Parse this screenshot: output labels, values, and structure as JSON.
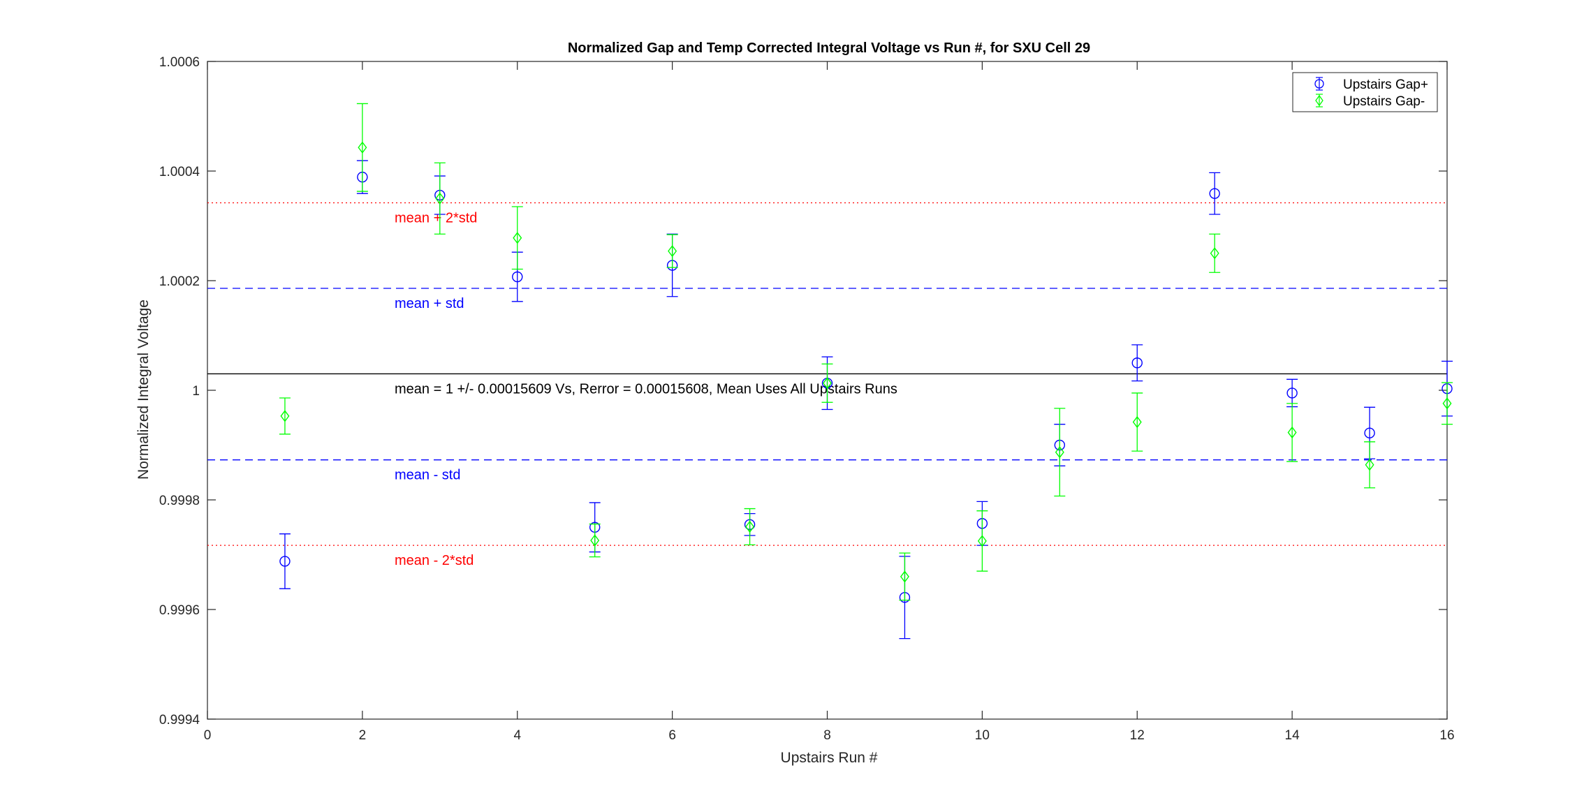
{
  "chart_data": {
    "type": "scatter",
    "title": "Normalized Gap and Temp Corrected Integral Voltage vs Run #, for SXU Cell 29",
    "xlabel": "Upstairs Run #",
    "ylabel": "Normalized Integral Voltage",
    "xlim": [
      0,
      16
    ],
    "ylim": [
      0.9994,
      1.0006
    ],
    "x_ticks": [
      0,
      2,
      4,
      6,
      8,
      10,
      12,
      14,
      16
    ],
    "y_ticks": [
      0.9994,
      0.9996,
      0.9998,
      1,
      1.0002,
      1.0004,
      1.0006
    ],
    "x_tick_labels": [
      "0",
      "2",
      "4",
      "6",
      "8",
      "10",
      "12",
      "14",
      "16"
    ],
    "y_tick_labels": [
      "0.9994",
      "0.9996",
      "0.9998",
      "1",
      "1.0002",
      "1.0004",
      "1.0006"
    ],
    "grid": false,
    "legend_position": "top-right",
    "series": [
      {
        "name": "Upstairs Gap+",
        "marker": "circle",
        "color": "#0000ff",
        "x": [
          1,
          2,
          3,
          4,
          5,
          6,
          7,
          8,
          9,
          10,
          11,
          12,
          13,
          14,
          15,
          16
        ],
        "y": [
          0.999688,
          1.000389,
          1.000356,
          1.000207,
          0.99975,
          1.000228,
          0.999755,
          1.000013,
          0.999622,
          0.999757,
          0.9999,
          1.00005,
          1.000359,
          0.999995,
          0.999922,
          1.000003
        ],
        "err": [
          5e-05,
          3e-05,
          3.5e-05,
          4.5e-05,
          4.5e-05,
          5.7e-05,
          2e-05,
          4.8e-05,
          7.5e-05,
          4e-05,
          3.8e-05,
          3.3e-05,
          3.8e-05,
          2.5e-05,
          4.7e-05,
          5e-05
        ]
      },
      {
        "name": "Upstairs Gap-",
        "marker": "diamond",
        "color": "#00ff00",
        "x": [
          1,
          2,
          3,
          4,
          5,
          6,
          7,
          8,
          9,
          10,
          11,
          12,
          13,
          14,
          15,
          16
        ],
        "y": [
          0.999953,
          1.000443,
          1.00035,
          1.000278,
          0.999726,
          1.000254,
          0.999751,
          1.000013,
          0.99966,
          0.999725,
          0.999887,
          0.999942,
          1.00025,
          0.999923,
          0.999864,
          0.999976
        ],
        "err": [
          3.3e-05,
          8e-05,
          6.5e-05,
          5.7e-05,
          3e-05,
          3e-05,
          3.3e-05,
          3.5e-05,
          4.3e-05,
          5.5e-05,
          8e-05,
          5.3e-05,
          3.5e-05,
          5.3e-05,
          4.2e-05,
          3.8e-05
        ]
      }
    ],
    "reference_lines": [
      {
        "label": "mean + 2*std",
        "y": 1.000342,
        "style": "dotted",
        "color": "#ff0000",
        "label_color": "#ff0000"
      },
      {
        "label": "mean + std",
        "y": 1.000186,
        "style": "dashed",
        "color": "#0000ff",
        "label_color": "#0000ff"
      },
      {
        "label": "mean = 1 +/- 0.00015609 Vs, Rerror = 0.00015608, Mean Uses All Upstairs Runs",
        "y": 1.00003,
        "style": "solid",
        "color": "#000000",
        "label_color": "#000000"
      },
      {
        "label": "mean - std",
        "y": 0.999873,
        "style": "dashed",
        "color": "#0000ff",
        "label_color": "#0000ff"
      },
      {
        "label": "mean - 2*std",
        "y": 0.999717,
        "style": "dotted",
        "color": "#ff0000",
        "label_color": "#ff0000"
      }
    ]
  }
}
